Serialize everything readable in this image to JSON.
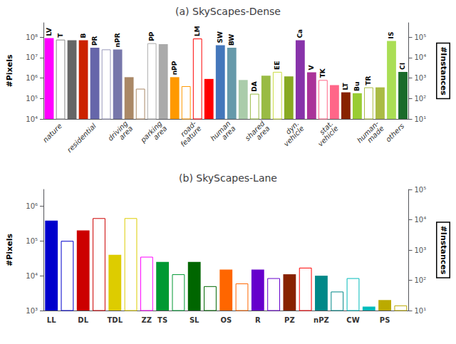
{
  "chart_data": [
    {
      "type": "bar",
      "title": "(a) SkyScapes-Dense",
      "categories": [
        null,
        "nature",
        null,
        null,
        "residential",
        null,
        null,
        "driving\narea",
        null,
        null,
        "parking\narea",
        null,
        null,
        "road-\nfeature",
        null,
        null,
        "human\narea",
        null,
        null,
        "shared\narea",
        null,
        null,
        "dyn.\nvehicle",
        null,
        null,
        "stat.\nvehicle",
        null,
        null,
        null,
        "human-\nmade",
        null,
        "others"
      ],
      "series": [
        {
          "marker": "filled",
          "values": [
            90000000,
            null,
            70000000,
            70000000,
            30000000,
            null,
            25000000,
            1100000,
            null,
            null,
            45000000,
            1100000,
            null,
            null,
            900000,
            40000000,
            30000000,
            800000,
            null,
            1300000,
            null,
            1200000,
            70000000,
            1900000,
            null,
            450000,
            200000,
            180000,
            null,
            350000,
            65000000,
            2000000
          ],
          "colors": [
            "#FF00FF",
            null,
            "#666666",
            "#CC2200",
            "#6666AA",
            null,
            "#7777AA",
            "#AA8866",
            null,
            null,
            "#AAAAAA",
            "#FF9900",
            null,
            null,
            "#FF0000",
            "#4477BB",
            "#6699AA",
            "#AACCAA",
            null,
            "#99BB44",
            null,
            "#88AA22",
            "#8833AA",
            "#AA3399",
            null,
            "#FF6688",
            "#882200",
            "#99CC33",
            null,
            "#AABB44",
            "#AADE55",
            "#1A6B2A"
          ],
          "labels": [
            "LV",
            null,
            null,
            "B",
            "PR",
            null,
            "nPR",
            null,
            null,
            null,
            null,
            "nPP",
            null,
            null,
            null,
            "SW",
            "BW",
            null,
            null,
            null,
            null,
            null,
            "Ca",
            "V",
            null,
            null,
            "LT",
            "Bu",
            null,
            null,
            "IS",
            "CI"
          ]
        },
        {
          "marker": "hollow",
          "values": [
            null,
            75000000,
            null,
            null,
            null,
            25000000,
            null,
            null,
            300000,
            50000000,
            null,
            null,
            400000,
            85000000,
            null,
            null,
            null,
            null,
            170000,
            null,
            2000000,
            null,
            null,
            null,
            800000,
            null,
            null,
            null,
            350000,
            null,
            null,
            null
          ],
          "colors": [
            null,
            "#888888",
            null,
            null,
            null,
            "#9999BB",
            null,
            null,
            "#AA8866",
            "#AAAAAA",
            null,
            null,
            "#FF9900",
            "#FF0000",
            null,
            null,
            null,
            null,
            "#99BB44",
            null,
            "#CCDD44",
            null,
            null,
            null,
            "#FF6688",
            null,
            null,
            null,
            "#AABB44",
            null,
            null,
            null
          ],
          "labels": [
            null,
            "T",
            null,
            null,
            null,
            null,
            null,
            null,
            null,
            "PP",
            null,
            null,
            null,
            "LM",
            null,
            null,
            null,
            null,
            "DA",
            null,
            "EE",
            null,
            null,
            null,
            "TK",
            null,
            null,
            null,
            "TR",
            null,
            null,
            null
          ]
        }
      ],
      "ylabel": "#Pixels",
      "y2label": "#Instances",
      "log": true,
      "grid": false,
      "ylim": [
        10000,
        500000000
      ],
      "yticks": [
        {
          "value": 10000,
          "label": "10⁴"
        },
        {
          "value": 100000,
          "label": "10⁵"
        },
        {
          "value": 1000000,
          "label": "10⁶"
        },
        {
          "value": 10000000,
          "label": "10⁷"
        },
        {
          "value": 100000000,
          "label": "10⁸"
        }
      ],
      "y2lim": [
        10,
        500000
      ],
      "y2ticks": [
        {
          "value": 10,
          "label": "10¹"
        },
        {
          "value": 100,
          "label": "10²"
        },
        {
          "value": 1000,
          "label": "10³"
        },
        {
          "value": 10000,
          "label": "10⁴"
        },
        {
          "value": 100000,
          "label": "10⁵"
        }
      ]
    },
    {
      "type": "bar",
      "title": "(b) SkyScapes-Lane",
      "categories": [
        "LL",
        null,
        "DL",
        null,
        "TDL",
        null,
        "ZZ",
        "TS",
        null,
        "SL",
        null,
        "OS",
        null,
        "R",
        null,
        "PZ",
        null,
        "nPZ",
        null,
        "CW",
        null,
        "PS",
        null
      ],
      "series": [
        {
          "marker": "filled",
          "values": [
            380000,
            null,
            200000,
            null,
            40000,
            null,
            null,
            25000,
            null,
            25000,
            null,
            15000,
            null,
            15000,
            null,
            11000,
            null,
            10000,
            null,
            null,
            1300,
            2000,
            null
          ],
          "colors": [
            "#0000CC",
            null,
            "#CC0000",
            null,
            "#DDCC00",
            null,
            null,
            "#009933",
            null,
            "#006600",
            null,
            "#FF6600",
            null,
            "#6600CC",
            null,
            "#882200",
            null,
            "#008888",
            null,
            null,
            "#00BBBB",
            "#BBAA00",
            null
          ]
        },
        {
          "marker": "hollow",
          "values": [
            null,
            100000,
            null,
            450000,
            null,
            450000,
            35000,
            null,
            11000,
            null,
            5000,
            null,
            6000,
            null,
            8500,
            null,
            17000,
            null,
            3500,
            8500,
            null,
            null,
            1400
          ],
          "colors": [
            null,
            "#0000CC",
            null,
            "#CC0000",
            null,
            "#DDCC00",
            "#FF00FF",
            null,
            "#009933",
            null,
            "#006600",
            null,
            "#FF6600",
            null,
            "#6600CC",
            null,
            "#FF0000",
            null,
            "#008888",
            "#00BBBB",
            null,
            null,
            "#BBAA00"
          ]
        }
      ],
      "ylabel": "#Pixels",
      "y2label": "#Instances",
      "log": true,
      "grid": false,
      "ylim": [
        1000,
        3000000
      ],
      "yticks": [
        {
          "value": 1000,
          "label": "10³"
        },
        {
          "value": 10000,
          "label": "10⁴"
        },
        {
          "value": 100000,
          "label": "10⁵"
        },
        {
          "value": 1000000,
          "label": "10⁶"
        }
      ],
      "y2lim": [
        10,
        100000
      ],
      "y2ticks": [
        {
          "value": 10,
          "label": "10¹"
        },
        {
          "value": 100,
          "label": "10²"
        },
        {
          "value": 1000,
          "label": "10³"
        },
        {
          "value": 10000,
          "label": "10⁴"
        },
        {
          "value": 100000,
          "label": "10⁵"
        }
      ]
    }
  ]
}
